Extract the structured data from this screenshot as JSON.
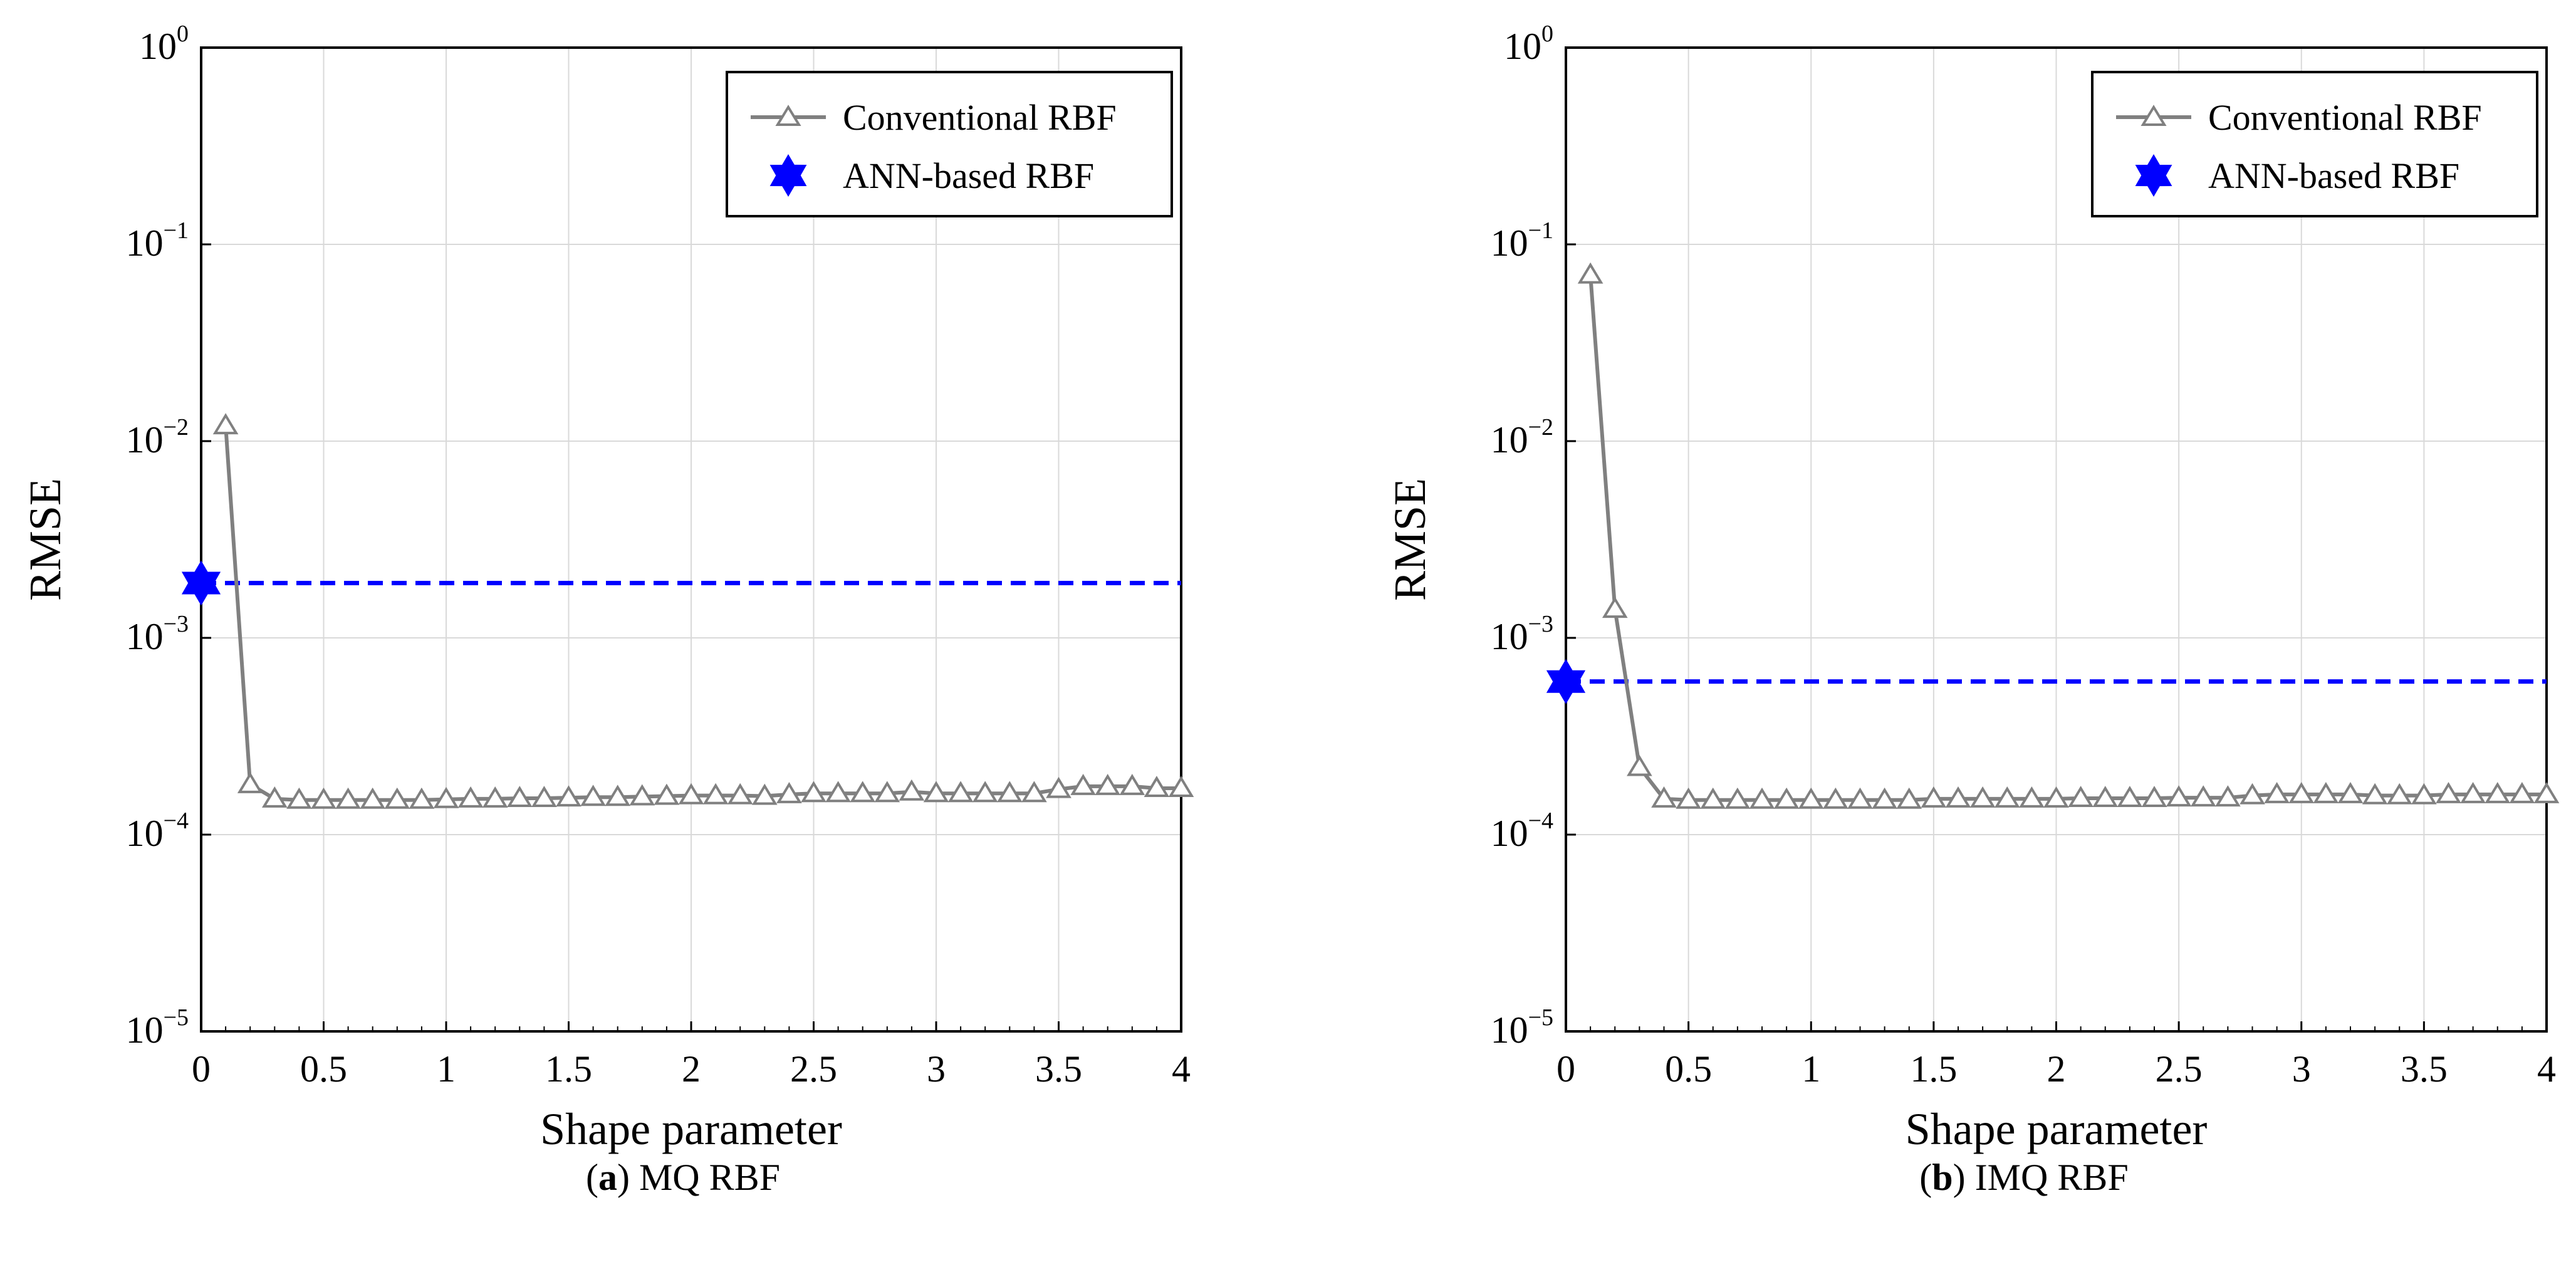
{
  "chart_data": [
    {
      "type": "line",
      "panel_label": "a",
      "caption": "MQ RBF",
      "xlabel": "Shape parameter",
      "ylabel": "RMSE",
      "yscale": "log",
      "xlim": [
        0,
        4
      ],
      "ylim": [
        1e-05,
        1
      ],
      "xticks": [
        "0",
        "0.5",
        "1",
        "1.5",
        "2",
        "2.5",
        "3",
        "3.5",
        "4"
      ],
      "yticks": [
        {
          "base": "10",
          "exp": "0"
        },
        {
          "base": "10",
          "exp": "−1"
        },
        {
          "base": "10",
          "exp": "−2"
        },
        {
          "base": "10",
          "exp": "−3"
        },
        {
          "base": "10",
          "exp": "−4"
        },
        {
          "base": "10",
          "exp": "−5"
        }
      ],
      "grid": true,
      "legend_position": "top-right",
      "series": [
        {
          "name": "Conventional RBF",
          "style": "solid-line-triangle-markers",
          "color": "#808080",
          "x": [
            0.1,
            0.2,
            0.3,
            0.4,
            0.5,
            0.6,
            0.7,
            0.8,
            0.9,
            1.0,
            1.1,
            1.2,
            1.3,
            1.4,
            1.5,
            1.6,
            1.7,
            1.8,
            1.9,
            2.0,
            2.1,
            2.2,
            2.3,
            2.4,
            2.5,
            2.6,
            2.7,
            2.8,
            2.9,
            3.0,
            3.1,
            3.2,
            3.3,
            3.4,
            3.5,
            3.6,
            3.7,
            3.8,
            3.9,
            4.0
          ],
          "y": [
            0.012,
            0.00018,
            0.000152,
            0.00015,
            0.00015,
            0.00015,
            0.00015,
            0.00015,
            0.00015,
            0.000151,
            0.000152,
            0.000152,
            0.000153,
            0.000153,
            0.000154,
            0.000155,
            0.000155,
            0.000156,
            0.000157,
            0.000158,
            0.000158,
            0.000158,
            0.000157,
            0.00016,
            0.000162,
            0.000162,
            0.000162,
            0.000162,
            0.000165,
            0.000162,
            0.000162,
            0.000162,
            0.000162,
            0.000162,
            0.00017,
            0.000176,
            0.000176,
            0.000176,
            0.000172,
            0.000172
          ]
        },
        {
          "name": "ANN-based RBF",
          "style": "star-marker-dashed-reference",
          "color": "#0000ff",
          "x": [
            0
          ],
          "y": [
            0.0019
          ]
        }
      ]
    },
    {
      "type": "line",
      "panel_label": "b",
      "caption": "IMQ RBF",
      "xlabel": "Shape parameter",
      "ylabel": "RMSE",
      "yscale": "log",
      "xlim": [
        0,
        4
      ],
      "ylim": [
        1e-05,
        1
      ],
      "xticks": [
        "0",
        "0.5",
        "1",
        "1.5",
        "2",
        "2.5",
        "3",
        "3.5",
        "4"
      ],
      "yticks": [
        {
          "base": "10",
          "exp": "0"
        },
        {
          "base": "10",
          "exp": "−1"
        },
        {
          "base": "10",
          "exp": "−2"
        },
        {
          "base": "10",
          "exp": "−3"
        },
        {
          "base": "10",
          "exp": "−4"
        },
        {
          "base": "10",
          "exp": "−5"
        }
      ],
      "grid": true,
      "legend_position": "top-right",
      "series": [
        {
          "name": "Conventional RBF",
          "style": "solid-line-triangle-markers",
          "color": "#808080",
          "x": [
            0.1,
            0.2,
            0.3,
            0.4,
            0.5,
            0.6,
            0.7,
            0.8,
            0.9,
            1.0,
            1.1,
            1.2,
            1.3,
            1.4,
            1.5,
            1.6,
            1.7,
            1.8,
            1.9,
            2.0,
            2.1,
            2.2,
            2.3,
            2.4,
            2.5,
            2.6,
            2.7,
            2.8,
            2.9,
            3.0,
            3.1,
            3.2,
            3.3,
            3.4,
            3.5,
            3.6,
            3.7,
            3.8,
            3.9,
            4.0
          ],
          "y": [
            0.07,
            0.0014,
            0.00022,
            0.000152,
            0.00015,
            0.00015,
            0.00015,
            0.00015,
            0.00015,
            0.00015,
            0.00015,
            0.00015,
            0.00015,
            0.00015,
            0.000152,
            0.000152,
            0.000152,
            0.000152,
            0.000152,
            0.000152,
            0.000153,
            0.000153,
            0.000153,
            0.000153,
            0.000154,
            0.000154,
            0.000154,
            0.000158,
            0.00016,
            0.00016,
            0.00016,
            0.00016,
            0.000158,
            0.000158,
            0.000158,
            0.00016,
            0.00016,
            0.00016,
            0.00016,
            0.00016
          ]
        },
        {
          "name": "ANN-based RBF",
          "style": "star-marker-dashed-reference",
          "color": "#0000ff",
          "x": [
            0
          ],
          "y": [
            0.0006
          ]
        }
      ]
    }
  ]
}
